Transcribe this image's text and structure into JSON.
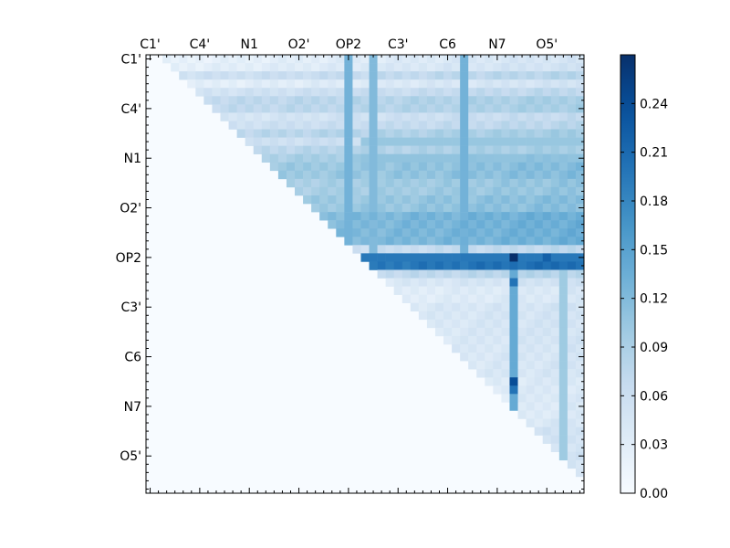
{
  "chart_data": {
    "type": "heatmap",
    "title": "",
    "xlabel": "",
    "ylabel": "",
    "n": 53,
    "tick_indices": [
      0,
      6,
      12,
      18,
      24,
      30,
      36,
      42,
      48
    ],
    "tick_labels": [
      "C1'",
      "C4'",
      "N1",
      "O2'",
      "OP2",
      "C3'",
      "C6",
      "N7",
      "O5'"
    ],
    "colorbar": {
      "min": 0.0,
      "max": 0.27,
      "ticks": [
        0.0,
        0.03,
        0.06,
        0.09,
        0.12,
        0.15,
        0.18,
        0.21,
        0.24
      ],
      "tick_labels": [
        "0.00",
        "0.03",
        "0.06",
        "0.09",
        "0.12",
        "0.15",
        "0.18",
        "0.21",
        "0.24"
      ],
      "colormap": "Blues"
    },
    "colors": {
      "low": "#f7fbff",
      "high": "#08306b",
      "axis": "#000000"
    },
    "matrix_layout": "upper-triangular",
    "row_base_values": [
      0.02,
      0.025,
      0.055,
      0.025,
      0.05,
      0.07,
      0.07,
      0.045,
      0.055,
      0.075,
      0.055,
      0.075,
      0.09,
      0.1,
      0.1,
      0.09,
      0.09,
      0.1,
      0.1,
      0.12,
      0.12,
      0.12,
      0.12,
      0.06,
      0.03,
      0.195,
      0.07,
      0.04,
      0.03,
      0.03,
      0.04,
      0.04,
      0.04,
      0.04,
      0.04,
      0.04,
      0.04,
      0.04,
      0.04,
      0.035,
      0.035,
      0.035,
      0.035,
      0.035,
      0.04,
      0.05,
      0.05,
      0.05,
      0.05,
      0.045,
      0.04,
      0.035,
      0.03
    ],
    "strong_rows": [
      {
        "row": 24,
        "from": 26,
        "to": 52,
        "value": 0.195,
        "peaks": [
          {
            "col": 44,
            "value": 0.27
          },
          {
            "col": 48,
            "value": 0.22
          }
        ]
      },
      {
        "row": 12,
        "from": 26,
        "to": 52,
        "value": 0.11
      },
      {
        "row": 10,
        "from": 26,
        "to": 52,
        "value": 0.105
      }
    ],
    "strong_columns": [
      {
        "col": 38,
        "from": 0,
        "to": 23,
        "value": 0.13
      },
      {
        "col": 27,
        "from": 0,
        "to": 23,
        "value": 0.12
      },
      {
        "col": 24,
        "from": 0,
        "to": 23,
        "value": 0.13
      },
      {
        "col": 44,
        "from": 25,
        "to": 44,
        "value": 0.14,
        "peaks": [
          {
            "row": 27,
            "value": 0.2
          },
          {
            "row": 39,
            "value": 0.24
          },
          {
            "row": 40,
            "value": 0.2
          },
          {
            "row": 36,
            "value": 0.14
          }
        ]
      },
      {
        "col": 50,
        "from": 25,
        "to": 49,
        "value": 0.1
      }
    ]
  }
}
